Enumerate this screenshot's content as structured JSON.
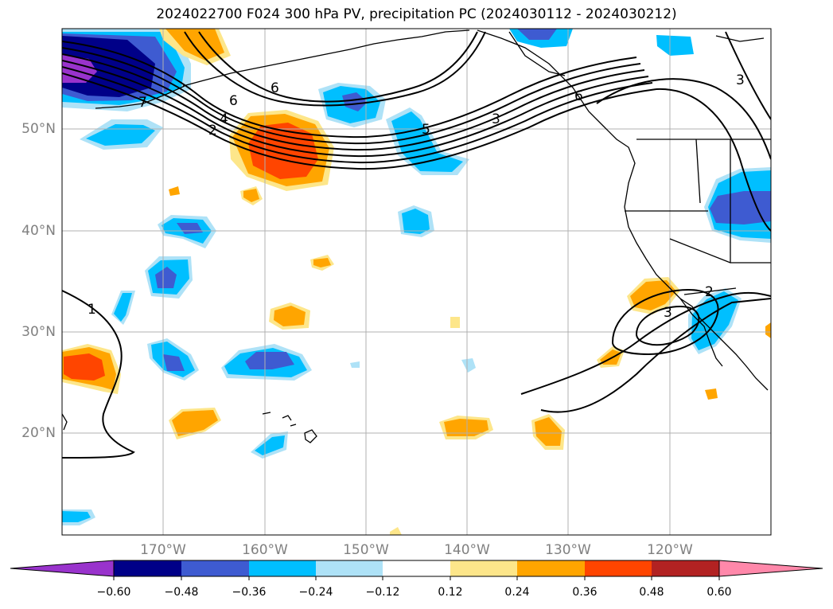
{
  "title": "2024022700 F024 300 hPa PV, precipitation PC (2024030112 - 2024030212)",
  "latitude_labels": [
    "50°N",
    "40°N",
    "30°N",
    "20°N"
  ],
  "longitude_labels": [
    "170°W",
    "160°W",
    "150°W",
    "140°W",
    "130°W",
    "120°W"
  ],
  "contour_labels": [
    "7",
    "6",
    "4",
    "2",
    "6",
    "5",
    "3",
    "6",
    "3",
    "1",
    "2",
    "3"
  ],
  "colorbar": {
    "ticks": [
      "−0.60",
      "−0.48",
      "−0.36",
      "−0.24",
      "−0.12",
      "0.12",
      "0.24",
      "0.36",
      "0.48",
      "0.60"
    ],
    "colors": [
      "#9933cc",
      "#000088",
      "#3e5bd1",
      "#00bfff",
      "#aee2f7",
      "#ffffff",
      "#fde68a",
      "#ffa500",
      "#ff4500",
      "#b22222",
      "#ff88aa"
    ]
  },
  "palette": {
    "strong_positive": "#ff4500",
    "positive": "#ffa500",
    "weak_positive": "#fde68a",
    "weak_negative": "#aee2f7",
    "negative": "#00bfff",
    "strong_negative": "#3e5bd1",
    "very_strong_negative": "#000088",
    "extreme_negative": "#9933cc",
    "gridline": "#b0b0b0",
    "axis_label": "#808080"
  }
}
